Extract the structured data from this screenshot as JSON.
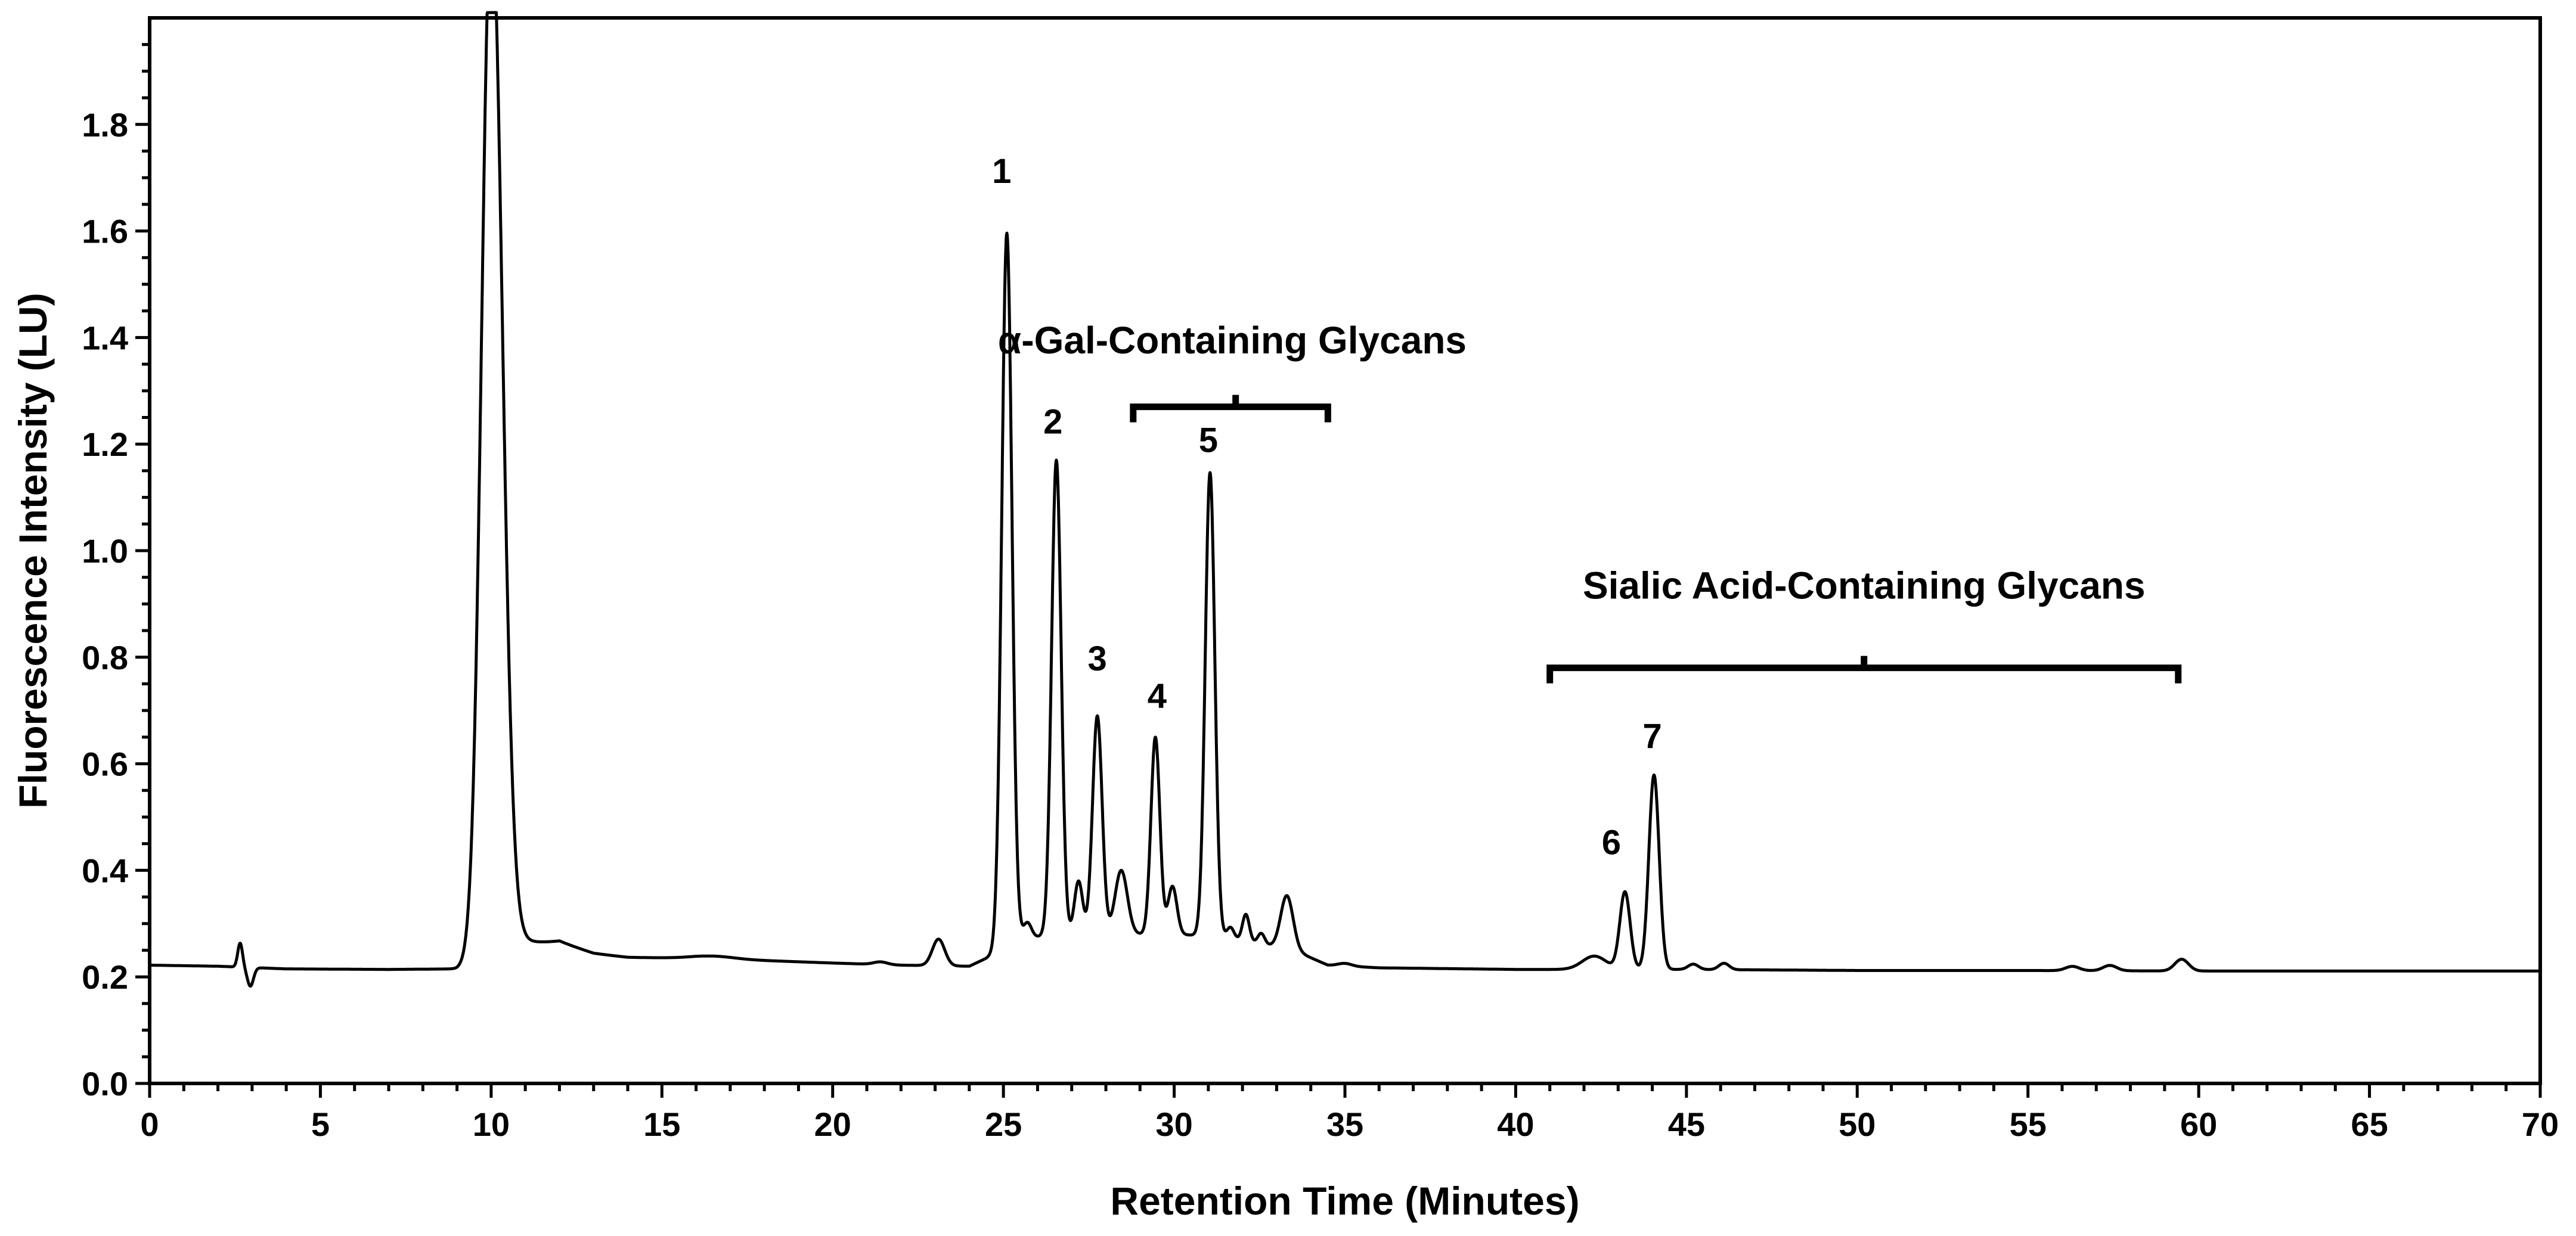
{
  "chart_data": {
    "type": "line",
    "title": "",
    "xlabel": "Retention Time (Minutes)",
    "ylabel": "Fluorescence Intensity (LU)",
    "xlim": [
      0,
      70
    ],
    "ylim": [
      0,
      2.0
    ],
    "x_ticks": [
      "0",
      "5",
      "10",
      "15",
      "20",
      "25",
      "30",
      "35",
      "40",
      "45",
      "50",
      "55",
      "60",
      "65",
      "70"
    ],
    "y_ticks": [
      "0.0",
      "0.2",
      "0.4",
      "0.6",
      "0.8",
      "1.0",
      "1.2",
      "1.4",
      "1.6",
      "1.8"
    ],
    "grid": false,
    "legend": "none",
    "line_color": "#000000",
    "baseline": [
      [
        0,
        0.222
      ],
      [
        2,
        0.22
      ],
      [
        4,
        0.215
      ],
      [
        7,
        0.214
      ],
      [
        9,
        0.215
      ],
      [
        12,
        0.26
      ],
      [
        13,
        0.242
      ],
      [
        14,
        0.236
      ],
      [
        16,
        0.235
      ],
      [
        17,
        0.233
      ],
      [
        20,
        0.226
      ],
      [
        22,
        0.222
      ],
      [
        24,
        0.22
      ],
      [
        24.5,
        0.235
      ],
      [
        25.5,
        0.27
      ],
      [
        26.5,
        0.28
      ],
      [
        28,
        0.28
      ],
      [
        30,
        0.28
      ],
      [
        31.5,
        0.275
      ],
      [
        33.5,
        0.25
      ],
      [
        34.5,
        0.222
      ],
      [
        36,
        0.217
      ],
      [
        40,
        0.214
      ],
      [
        45,
        0.214
      ],
      [
        50,
        0.212
      ],
      [
        55,
        0.212
      ],
      [
        60,
        0.211
      ],
      [
        65,
        0.211
      ],
      [
        70,
        0.211
      ]
    ],
    "peaks": [
      {
        "x": 2.65,
        "h": 0.045,
        "w": 0.07
      },
      {
        "x": 2.95,
        "h": -0.035,
        "w": 0.09
      },
      {
        "x": 10.0,
        "h": 1.95,
        "wl": 0.28,
        "wr": 0.32,
        "tail": 0.07,
        "tau": 0.9
      },
      {
        "x": 16.5,
        "h": 0.005,
        "w": 0.6
      },
      {
        "x": 21.4,
        "h": 0.005,
        "w": 0.2
      },
      {
        "x": 23.1,
        "h": 0.05,
        "w": 0.18
      },
      {
        "x": 25.1,
        "h": 1.34,
        "w": 0.15
      },
      {
        "x": 25.7,
        "h": 0.03,
        "w": 0.12
      },
      {
        "x": 26.55,
        "h": 0.89,
        "w": 0.14
      },
      {
        "x": 27.2,
        "h": 0.1,
        "w": 0.12
      },
      {
        "x": 27.75,
        "h": 0.41,
        "w": 0.14
      },
      {
        "x": 28.45,
        "h": 0.12,
        "w": 0.18
      },
      {
        "x": 29.45,
        "h": 0.37,
        "w": 0.13
      },
      {
        "x": 29.95,
        "h": 0.09,
        "w": 0.13
      },
      {
        "x": 31.05,
        "h": 0.87,
        "w": 0.14
      },
      {
        "x": 31.65,
        "h": 0.02,
        "w": 0.1
      },
      {
        "x": 32.1,
        "h": 0.05,
        "w": 0.1
      },
      {
        "x": 32.55,
        "h": 0.02,
        "w": 0.1
      },
      {
        "x": 33.3,
        "h": 0.1,
        "w": 0.18
      },
      {
        "x": 35.0,
        "h": 0.005,
        "w": 0.2
      },
      {
        "x": 42.3,
        "h": 0.025,
        "w": 0.35
      },
      {
        "x": 43.2,
        "h": 0.145,
        "w": 0.15
      },
      {
        "x": 44.05,
        "h": 0.365,
        "w": 0.15
      },
      {
        "x": 45.2,
        "h": 0.01,
        "w": 0.15
      },
      {
        "x": 46.1,
        "h": 0.012,
        "w": 0.15
      },
      {
        "x": 56.3,
        "h": 0.008,
        "w": 0.2
      },
      {
        "x": 57.4,
        "h": 0.01,
        "w": 0.2
      },
      {
        "x": 59.5,
        "h": 0.022,
        "w": 0.2
      }
    ],
    "peak_labels": [
      {
        "text": "1",
        "x": 24.95,
        "y": 1.69
      },
      {
        "text": "2",
        "x": 26.45,
        "y": 1.22
      },
      {
        "text": "3",
        "x": 27.75,
        "y": 0.775
      },
      {
        "text": "4",
        "x": 29.5,
        "y": 0.705
      },
      {
        "text": "5",
        "x": 31.0,
        "y": 1.185
      },
      {
        "text": "6",
        "x": 42.8,
        "y": 0.43
      },
      {
        "text": "7",
        "x": 44.0,
        "y": 0.63
      }
    ],
    "annotations": [
      {
        "text": "α-Gal-Containing Glycans",
        "x": 31.7,
        "y": 1.37,
        "bracket": [
          28.8,
          34.5
        ],
        "bracket_y": 1.27,
        "bracket_mid": 31.8
      },
      {
        "text": "Sialic Acid-Containing Glycans",
        "x": 50.2,
        "y": 0.91,
        "bracket": [
          41.0,
          59.4
        ],
        "bracket_y": 0.78,
        "bracket_mid": 50.2
      }
    ]
  }
}
